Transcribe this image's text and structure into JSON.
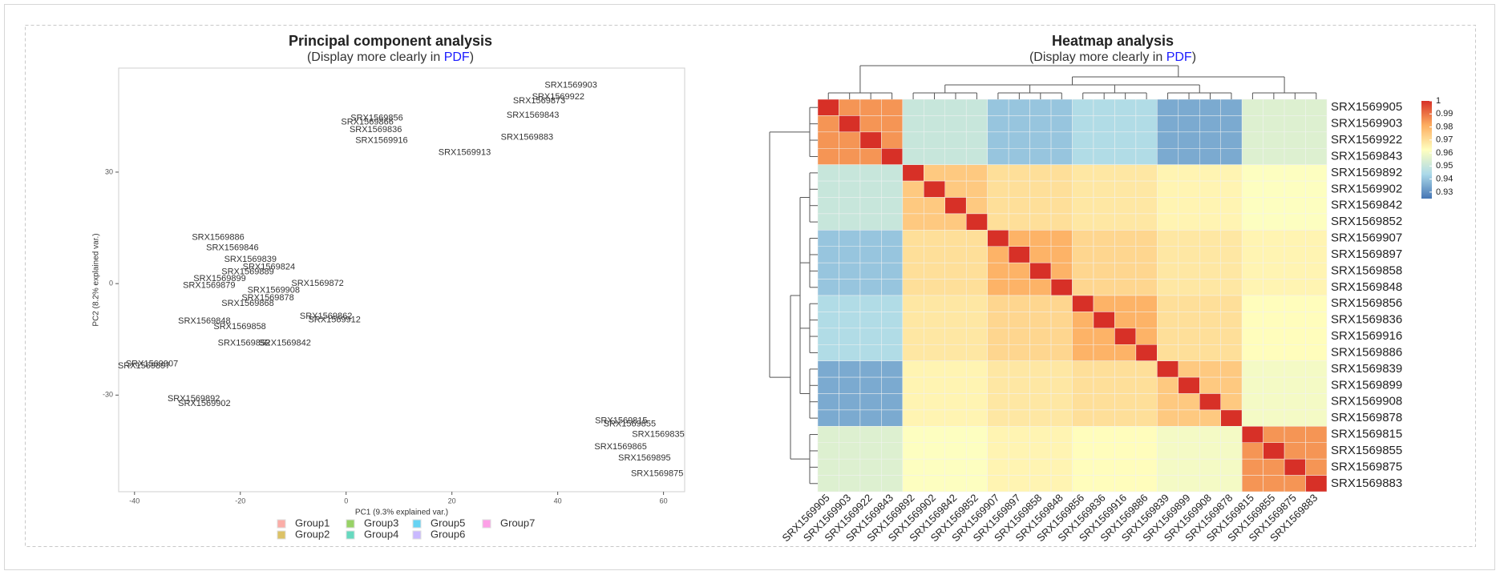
{
  "chart_data": [
    {
      "type": "scatter",
      "title": "Principal component analysis",
      "subtitle": [
        "(Display more clearly in ",
        "PDF",
        ")"
      ],
      "x_label": "PC1 (9.3% explained var.)",
      "y_label": "PC2 (8.2% explained var.)",
      "xlim": [
        -43,
        64
      ],
      "ylim": [
        -56,
        58
      ],
      "xticks": [
        -40,
        -20,
        0,
        20,
        40,
        60
      ],
      "yticks": [
        -30,
        0,
        30
      ],
      "series": [
        {
          "name": "Group1",
          "color": "#F8766D",
          "labels": [
            "SRX1569815",
            "SRX1569855",
            "SRX1569835",
            "SRX1569895",
            "SRX1569875",
            "SRX1569865"
          ],
          "x": [
            52,
            53.6,
            59,
            56.4,
            58.8,
            51.9
          ],
          "y": [
            -37,
            -37.8,
            -40.6,
            -47,
            -51.2,
            -44
          ]
        },
        {
          "name": "Group2",
          "color": "#C49A00",
          "labels": [
            "SRX1569839",
            "SRX1569899",
            "SRX1569879",
            "SRX1569889"
          ],
          "x": [
            -18.1,
            -23.9,
            -25.9,
            -18.6
          ],
          "y": [
            6.5,
            1.3,
            -0.5,
            3.1
          ]
        },
        {
          "name": "Group3",
          "color": "#53B400",
          "labels": [
            "SRX1569856",
            "SRX1569836",
            "SRX1569916",
            "SRX1569886",
            "SRX1569846",
            "SRX1569866"
          ],
          "x": [
            5.8,
            5.6,
            6.7,
            -24.2,
            -21.5,
            4
          ],
          "y": [
            44.5,
            41.4,
            38.5,
            12.4,
            9.6,
            43.4
          ]
        },
        {
          "name": "Group4",
          "color": "#00C094",
          "labels": [
            "SRX1569907",
            "SRX1569897",
            "SRX1569858",
            "SRX1569824",
            "SRX1569848"
          ],
          "x": [
            -36.7,
            -38.2,
            -20.1,
            -14.6,
            -26.8
          ],
          "y": [
            -21.7,
            -22.2,
            -11.6,
            4.4,
            -10.1
          ]
        },
        {
          "name": "Group5",
          "color": "#00B6EB",
          "labels": [
            "SRX1569908",
            "SRX1569878",
            "SRX1569868"
          ],
          "x": [
            -13.7,
            -14.8,
            -18.6
          ],
          "y": [
            -1.8,
            -3.9,
            -5.4
          ]
        },
        {
          "name": "Group6",
          "color": "#A58AFF",
          "labels": [
            "SRX1569903",
            "SRX1569922",
            "SRX1569843",
            "SRX1569883",
            "SRX1569913",
            "SRX1569873"
          ],
          "x": [
            42.5,
            40.1,
            35.3,
            34.2,
            22.4,
            36.5
          ],
          "y": [
            53.3,
            50.2,
            45.3,
            39.3,
            35.2,
            49.1
          ]
        },
        {
          "name": "Group7",
          "color": "#FB61D7",
          "labels": [
            "SRX1569872",
            "SRX1569842",
            "SRX1569912",
            "SRX1569892",
            "SRX1569902",
            "SRX1569862",
            "SRX1569852"
          ],
          "x": [
            -5.4,
            -11.6,
            -2.2,
            -28.8,
            -26.8,
            -3.8,
            -19.3
          ],
          "y": [
            0,
            -16,
            -9.8,
            -31,
            -32.3,
            -8.8,
            -16
          ]
        }
      ]
    },
    {
      "type": "heatmap",
      "title": "Heatmap analysis",
      "subtitle": [
        "(Display more clearly in ",
        "PDF",
        ")"
      ],
      "labels": [
        "SRX1569905",
        "SRX1569903",
        "SRX1569922",
        "SRX1569843",
        "SRX1569892",
        "SRX1569902",
        "SRX1569842",
        "SRX1569852",
        "SRX1569907",
        "SRX1569897",
        "SRX1569858",
        "SRX1569848",
        "SRX1569856",
        "SRX1569836",
        "SRX1569916",
        "SRX1569886",
        "SRX1569839",
        "SRX1569899",
        "SRX1569908",
        "SRX1569878",
        "SRX1569815",
        "SRX1569855",
        "SRX1569875",
        "SRX1569883"
      ],
      "zlim": [
        0.925,
        1
      ],
      "colors": [
        "#4575b4",
        "#abd9e9",
        "#ffffbf",
        "#fdae61",
        "#d73027"
      ],
      "colorbar_ticks": [
        1,
        0.99,
        0.98,
        0.97,
        0.96,
        0.95,
        0.94,
        0.93
      ],
      "matrix": [
        [
          1,
          0.985,
          0.985,
          0.985,
          0.95,
          0.95,
          0.95,
          0.95,
          0.94,
          0.94,
          0.94,
          0.94,
          0.945,
          0.945,
          0.945,
          0.945,
          0.935,
          0.935,
          0.935,
          0.935,
          0.955,
          0.955,
          0.955,
          0.955
        ],
        [
          0.985,
          1,
          0.985,
          0.985,
          0.95,
          0.95,
          0.95,
          0.95,
          0.94,
          0.94,
          0.94,
          0.94,
          0.945,
          0.945,
          0.945,
          0.945,
          0.935,
          0.935,
          0.935,
          0.935,
          0.955,
          0.955,
          0.955,
          0.955
        ],
        [
          0.985,
          0.985,
          1,
          0.985,
          0.95,
          0.95,
          0.95,
          0.95,
          0.94,
          0.94,
          0.94,
          0.94,
          0.945,
          0.945,
          0.945,
          0.945,
          0.935,
          0.935,
          0.935,
          0.935,
          0.955,
          0.955,
          0.955,
          0.955
        ],
        [
          0.985,
          0.985,
          0.985,
          1,
          0.95,
          0.95,
          0.95,
          0.95,
          0.94,
          0.94,
          0.94,
          0.94,
          0.945,
          0.945,
          0.945,
          0.945,
          0.935,
          0.935,
          0.935,
          0.935,
          0.955,
          0.955,
          0.955,
          0.955
        ],
        [
          0.95,
          0.95,
          0.95,
          0.95,
          1,
          0.975,
          0.975,
          0.975,
          0.97,
          0.97,
          0.97,
          0.97,
          0.968,
          0.968,
          0.968,
          0.968,
          0.965,
          0.965,
          0.965,
          0.965,
          0.962,
          0.962,
          0.962,
          0.962
        ],
        [
          0.95,
          0.95,
          0.95,
          0.95,
          0.975,
          1,
          0.975,
          0.975,
          0.97,
          0.97,
          0.97,
          0.97,
          0.968,
          0.968,
          0.968,
          0.968,
          0.965,
          0.965,
          0.965,
          0.965,
          0.962,
          0.962,
          0.962,
          0.962
        ],
        [
          0.95,
          0.95,
          0.95,
          0.95,
          0.975,
          0.975,
          1,
          0.975,
          0.97,
          0.97,
          0.97,
          0.97,
          0.968,
          0.968,
          0.968,
          0.968,
          0.965,
          0.965,
          0.965,
          0.965,
          0.962,
          0.962,
          0.962,
          0.962
        ],
        [
          0.95,
          0.95,
          0.95,
          0.95,
          0.975,
          0.975,
          0.975,
          1,
          0.97,
          0.97,
          0.97,
          0.97,
          0.968,
          0.968,
          0.968,
          0.968,
          0.965,
          0.965,
          0.965,
          0.965,
          0.962,
          0.962,
          0.962,
          0.962
        ],
        [
          0.94,
          0.94,
          0.94,
          0.94,
          0.97,
          0.97,
          0.97,
          0.97,
          1,
          0.98,
          0.98,
          0.98,
          0.972,
          0.972,
          0.972,
          0.972,
          0.968,
          0.968,
          0.968,
          0.968,
          0.965,
          0.965,
          0.965,
          0.965
        ],
        [
          0.94,
          0.94,
          0.94,
          0.94,
          0.97,
          0.97,
          0.97,
          0.97,
          0.98,
          1,
          0.98,
          0.98,
          0.972,
          0.972,
          0.972,
          0.972,
          0.968,
          0.968,
          0.968,
          0.968,
          0.965,
          0.965,
          0.965,
          0.965
        ],
        [
          0.94,
          0.94,
          0.94,
          0.94,
          0.97,
          0.97,
          0.97,
          0.97,
          0.98,
          0.98,
          1,
          0.98,
          0.972,
          0.972,
          0.972,
          0.972,
          0.968,
          0.968,
          0.968,
          0.968,
          0.965,
          0.965,
          0.965,
          0.965
        ],
        [
          0.94,
          0.94,
          0.94,
          0.94,
          0.97,
          0.97,
          0.97,
          0.97,
          0.98,
          0.98,
          0.98,
          1,
          0.972,
          0.972,
          0.972,
          0.972,
          0.968,
          0.968,
          0.968,
          0.968,
          0.965,
          0.965,
          0.965,
          0.965
        ],
        [
          0.945,
          0.945,
          0.945,
          0.945,
          0.968,
          0.968,
          0.968,
          0.968,
          0.972,
          0.972,
          0.972,
          0.972,
          1,
          0.98,
          0.98,
          0.98,
          0.97,
          0.97,
          0.97,
          0.97,
          0.963,
          0.963,
          0.963,
          0.963
        ],
        [
          0.945,
          0.945,
          0.945,
          0.945,
          0.968,
          0.968,
          0.968,
          0.968,
          0.972,
          0.972,
          0.972,
          0.972,
          0.98,
          1,
          0.98,
          0.98,
          0.97,
          0.97,
          0.97,
          0.97,
          0.963,
          0.963,
          0.963,
          0.963
        ],
        [
          0.945,
          0.945,
          0.945,
          0.945,
          0.968,
          0.968,
          0.968,
          0.968,
          0.972,
          0.972,
          0.972,
          0.972,
          0.98,
          0.98,
          1,
          0.98,
          0.97,
          0.97,
          0.97,
          0.97,
          0.963,
          0.963,
          0.963,
          0.963
        ],
        [
          0.945,
          0.945,
          0.945,
          0.945,
          0.968,
          0.968,
          0.968,
          0.968,
          0.972,
          0.972,
          0.972,
          0.972,
          0.98,
          0.98,
          0.98,
          1,
          0.97,
          0.97,
          0.97,
          0.97,
          0.963,
          0.963,
          0.963,
          0.963
        ],
        [
          0.935,
          0.935,
          0.935,
          0.935,
          0.965,
          0.965,
          0.965,
          0.965,
          0.968,
          0.968,
          0.968,
          0.968,
          0.97,
          0.97,
          0.97,
          0.97,
          1,
          0.975,
          0.975,
          0.975,
          0.96,
          0.96,
          0.96,
          0.96
        ],
        [
          0.935,
          0.935,
          0.935,
          0.935,
          0.965,
          0.965,
          0.965,
          0.965,
          0.968,
          0.968,
          0.968,
          0.968,
          0.97,
          0.97,
          0.97,
          0.97,
          0.975,
          1,
          0.975,
          0.975,
          0.96,
          0.96,
          0.96,
          0.96
        ],
        [
          0.935,
          0.935,
          0.935,
          0.935,
          0.965,
          0.965,
          0.965,
          0.965,
          0.968,
          0.968,
          0.968,
          0.968,
          0.97,
          0.97,
          0.97,
          0.97,
          0.975,
          0.975,
          1,
          0.975,
          0.96,
          0.96,
          0.96,
          0.96
        ],
        [
          0.935,
          0.935,
          0.935,
          0.935,
          0.965,
          0.965,
          0.965,
          0.965,
          0.968,
          0.968,
          0.968,
          0.968,
          0.97,
          0.97,
          0.97,
          0.97,
          0.975,
          0.975,
          0.975,
          1,
          0.96,
          0.96,
          0.96,
          0.96
        ],
        [
          0.955,
          0.955,
          0.955,
          0.955,
          0.962,
          0.962,
          0.962,
          0.962,
          0.965,
          0.965,
          0.965,
          0.965,
          0.963,
          0.963,
          0.963,
          0.963,
          0.96,
          0.96,
          0.96,
          0.96,
          1,
          0.985,
          0.985,
          0.985
        ],
        [
          0.955,
          0.955,
          0.955,
          0.955,
          0.962,
          0.962,
          0.962,
          0.962,
          0.965,
          0.965,
          0.965,
          0.965,
          0.963,
          0.963,
          0.963,
          0.963,
          0.96,
          0.96,
          0.96,
          0.96,
          0.985,
          1,
          0.985,
          0.985
        ],
        [
          0.955,
          0.955,
          0.955,
          0.955,
          0.962,
          0.962,
          0.962,
          0.962,
          0.965,
          0.965,
          0.965,
          0.965,
          0.963,
          0.963,
          0.963,
          0.963,
          0.96,
          0.96,
          0.96,
          0.96,
          0.985,
          0.985,
          1,
          0.985
        ],
        [
          0.955,
          0.955,
          0.955,
          0.955,
          0.962,
          0.962,
          0.962,
          0.962,
          0.965,
          0.965,
          0.965,
          0.965,
          0.963,
          0.963,
          0.963,
          0.963,
          0.96,
          0.96,
          0.96,
          0.96,
          0.985,
          0.985,
          0.985,
          1
        ]
      ]
    }
  ]
}
